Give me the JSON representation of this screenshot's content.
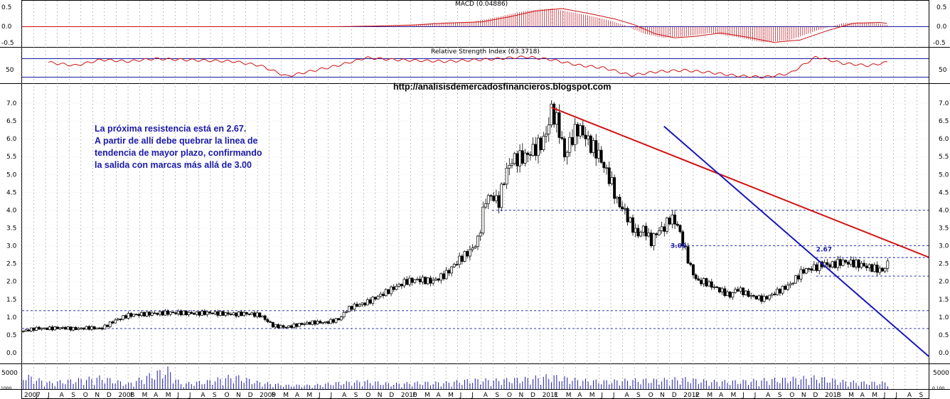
{
  "chart_data": [
    {
      "type": "bar",
      "panel": "MACD",
      "title": "MACD (0.04886)",
      "ylim": [
        -0.55,
        0.55
      ],
      "y_ticks": [
        "0.5",
        "0.0",
        "-0.5"
      ],
      "x": [
        2007.0,
        2007.5,
        2008.0,
        2008.5,
        2009.0,
        2009.3,
        2009.6,
        2009.9,
        2010.1,
        2010.4,
        2010.6,
        2010.8,
        2011.0,
        2011.2,
        2011.4,
        2011.55,
        2011.7,
        2011.85,
        2012.0,
        2012.2,
        2012.4,
        2012.6,
        2012.8,
        2013.0,
        2013.2,
        2013.4,
        2013.55
      ],
      "values": [
        0.0,
        0.0,
        0.0,
        0.0,
        0.0,
        0.0,
        0.02,
        0.05,
        0.1,
        0.14,
        0.28,
        0.45,
        0.52,
        0.38,
        0.22,
        0.05,
        -0.2,
        -0.32,
        -0.28,
        -0.18,
        -0.3,
        -0.45,
        -0.38,
        -0.12,
        0.1,
        0.12,
        0.05
      ]
    },
    {
      "type": "line",
      "panel": "RSI",
      "title": "Relative Strength Index (63.3718)",
      "ylim": [
        20,
        80
      ],
      "y_ticks": [
        "50"
      ],
      "reference_lines": [
        70,
        30
      ],
      "x": [
        2007.2,
        2007.4,
        2007.6,
        2007.8,
        2008.0,
        2008.2,
        2008.4,
        2008.6,
        2008.8,
        2009.0,
        2009.2,
        2009.4,
        2009.6,
        2009.8,
        2010.0,
        2010.2,
        2010.4,
        2010.6,
        2010.8,
        2011.0,
        2011.2,
        2011.4,
        2011.6,
        2011.8,
        2012.0,
        2012.2,
        2012.4,
        2012.6,
        2012.8,
        2013.0,
        2013.2,
        2013.4,
        2013.55
      ],
      "values": [
        62,
        55,
        68,
        64,
        70,
        68,
        66,
        64,
        55,
        32,
        44,
        56,
        72,
        68,
        66,
        64,
        67,
        70,
        74,
        68,
        56,
        50,
        34,
        42,
        45,
        40,
        33,
        30,
        38,
        74,
        60,
        55,
        63
      ]
    },
    {
      "type": "candlestick",
      "panel": "price",
      "title": "",
      "url_text": "http://analisisdemercadosfinancieros.blogspot.com",
      "ylim": [
        -0.1,
        7.25
      ],
      "y_ticks": [
        "7.0",
        "6.5",
        "6.0",
        "5.5",
        "5.0",
        "4.5",
        "4.0",
        "3.5",
        "3.0",
        "2.5",
        "2.0",
        "1.5",
        "1.0",
        "0.5",
        "0.0"
      ],
      "x_ticks": [
        "2007",
        "J",
        "J",
        "A",
        "S",
        "O",
        "N",
        "D",
        "2008",
        "F",
        "M",
        "A",
        "M",
        "J",
        "J",
        "A",
        "S",
        "O",
        "N",
        "D",
        "2009",
        "F",
        "M",
        "A",
        "M",
        "J",
        "J",
        "A",
        "S",
        "O",
        "N",
        "D",
        "2010",
        "F",
        "M",
        "A",
        "M",
        "J",
        "J",
        "A",
        "S",
        "O",
        "N",
        "D",
        "2011",
        "F",
        "M",
        "A",
        "M",
        "J",
        "J",
        "A",
        "S",
        "O",
        "N",
        "D",
        "2012",
        "F",
        "M",
        "A",
        "M",
        "J",
        "J",
        "A",
        "S",
        "O",
        "N",
        "D",
        "2013",
        "F",
        "M",
        "A",
        "M",
        "J",
        "J",
        "A",
        "S"
      ],
      "x": [
        2007.0,
        2007.1,
        2007.2,
        2007.3,
        2007.4,
        2007.5,
        2007.6,
        2007.7,
        2007.8,
        2007.9,
        2008.0,
        2008.1,
        2008.2,
        2008.3,
        2008.4,
        2008.5,
        2008.6,
        2008.7,
        2008.8,
        2008.85,
        2008.9,
        2009.0,
        2009.1,
        2009.2,
        2009.3,
        2009.4,
        2009.45,
        2009.5,
        2009.6,
        2009.7,
        2009.8,
        2009.9,
        2010.0,
        2010.1,
        2010.2,
        2010.3,
        2010.4,
        2010.45,
        2010.5,
        2010.55,
        2010.6,
        2010.65,
        2010.7,
        2010.8,
        2010.9,
        2010.95,
        2011.0,
        2011.05,
        2011.1,
        2011.15,
        2011.2,
        2011.25,
        2011.3,
        2011.35,
        2011.4,
        2011.45,
        2011.5,
        2011.55,
        2011.6,
        2011.65,
        2011.7,
        2011.75,
        2011.8,
        2011.85,
        2011.9,
        2011.95,
        2012.0,
        2012.05,
        2012.1,
        2012.15,
        2012.2,
        2012.25,
        2012.3,
        2012.35,
        2012.4,
        2012.5,
        2012.6,
        2012.7,
        2012.8,
        2012.9,
        2013.0,
        2013.05,
        2013.1,
        2013.15,
        2013.2,
        2013.3,
        2013.4,
        2013.5,
        2013.55
      ],
      "values": [
        0.6,
        0.68,
        0.68,
        0.7,
        0.67,
        0.7,
        0.68,
        0.9,
        1.05,
        1.08,
        1.1,
        1.12,
        1.12,
        1.1,
        1.12,
        1.1,
        1.08,
        1.1,
        1.05,
        0.9,
        0.75,
        0.72,
        0.8,
        0.85,
        0.85,
        0.95,
        1.2,
        1.3,
        1.4,
        1.6,
        1.8,
        2.0,
        2.05,
        2.0,
        2.2,
        2.6,
        2.9,
        3.2,
        4.3,
        4.4,
        4.2,
        5.0,
        5.4,
        5.5,
        5.8,
        6.0,
        6.8,
        6.4,
        5.5,
        6.0,
        6.3,
        6.1,
        5.8,
        5.6,
        5.2,
        4.8,
        4.2,
        4.0,
        3.6,
        3.3,
        3.5,
        3.1,
        3.4,
        3.5,
        3.8,
        3.6,
        3.0,
        2.4,
        2.0,
        2.0,
        1.9,
        1.8,
        1.7,
        1.6,
        1.8,
        1.6,
        1.5,
        1.7,
        1.9,
        2.3,
        2.4,
        2.5,
        2.45,
        2.5,
        2.55,
        2.5,
        2.4,
        2.3,
        2.55
      ],
      "resistance_lines": [
        4.0,
        3.0,
        2.67,
        2.15,
        1.18,
        0.68
      ],
      "trendlines": [
        {
          "color": "#d11212",
          "from": [
            2011.0,
            6.88
          ],
          "to": [
            2013.85,
            2.68
          ]
        },
        {
          "color": "#1717b8",
          "from": [
            2011.85,
            6.35
          ],
          "to": [
            2013.85,
            -0.1
          ]
        }
      ],
      "level_labels": [
        {
          "text": "2.67",
          "x": 2013.0,
          "y": 2.9
        },
        {
          "text": "3.00",
          "x": 2011.9,
          "y": 3.0
        }
      ],
      "annotation_lines": [
        "La próxima resistencia está en 2.67.",
        "A partir de allí debe quebrar la linea de",
        "tendencia de mayor plazo, confirmando",
        "la salida con marcas más allá de 3.00"
      ]
    },
    {
      "type": "bar",
      "panel": "volume",
      "y_ticks": [
        "5000"
      ],
      "ylim": [
        0,
        8000
      ],
      "x": [
        2007.0,
        2007.2,
        2007.4,
        2007.6,
        2007.8,
        2008.0,
        2008.1,
        2008.2,
        2008.4,
        2008.6,
        2008.8,
        2009.0,
        2009.2,
        2009.4,
        2009.6,
        2009.8,
        2010.0,
        2010.2,
        2010.4,
        2010.6,
        2010.8,
        2011.0,
        2011.2,
        2011.4,
        2011.6,
        2011.8,
        2012.0,
        2012.2,
        2012.4,
        2012.6,
        2012.8,
        2013.0,
        2013.2,
        2013.4
      ],
      "values": [
        5500,
        2500,
        3500,
        4500,
        2000,
        6000,
        7500,
        2000,
        3000,
        5000,
        2500,
        1500,
        1500,
        2500,
        3000,
        2000,
        2500,
        2500,
        3500,
        3500,
        4000,
        5000,
        3500,
        3000,
        3500,
        3500,
        4000,
        3000,
        3000,
        3500,
        4000,
        4500,
        3000,
        2500
      ]
    }
  ],
  "corner_labels": {
    "left": "1000",
    "right": "0.100"
  }
}
